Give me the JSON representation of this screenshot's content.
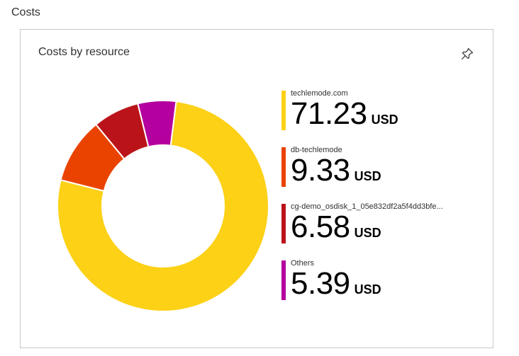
{
  "section": {
    "title": "Costs"
  },
  "tile": {
    "title": "Costs by resource",
    "pin_icon": "pin-icon"
  },
  "chart_data": {
    "type": "pie",
    "variant": "donut",
    "unit": "USD",
    "categories": [
      "techlemode.com",
      "db-techlemode",
      "cg-demo_osdisk_1_05e832df2a5f4dd3bfe...",
      "Others"
    ],
    "values": [
      71.23,
      9.33,
      6.58,
      5.39
    ],
    "colors": [
      "#fcd116",
      "#ea4300",
      "#ba141a",
      "#b4009e"
    ],
    "legend": "right"
  },
  "legend": [
    {
      "label": "techlemode.com",
      "value": "71.23",
      "unit": "USD"
    },
    {
      "label": "db-techlemode",
      "value": "9.33",
      "unit": "USD"
    },
    {
      "label": "cg-demo_osdisk_1_05e832df2a5f4dd3bfe...",
      "value": "6.58",
      "unit": "USD"
    },
    {
      "label": "Others",
      "value": "5.39",
      "unit": "USD"
    }
  ]
}
